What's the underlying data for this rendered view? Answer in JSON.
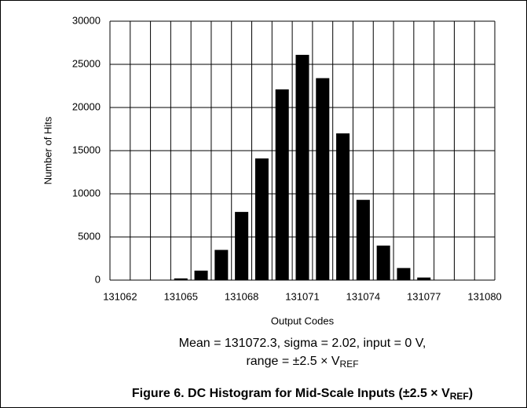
{
  "chart_data": {
    "type": "bar",
    "categories": [
      131062,
      null,
      null,
      131065,
      null,
      null,
      131068,
      null,
      null,
      131071,
      null,
      null,
      131074,
      null,
      null,
      131077,
      null,
      null,
      131080
    ],
    "values": [
      0,
      0,
      20,
      200,
      1100,
      3500,
      7900,
      14100,
      22100,
      26100,
      23400,
      17000,
      9300,
      4000,
      1400,
      300,
      30,
      0,
      0
    ],
    "color": "#000000",
    "ylim": [
      0,
      30000
    ],
    "yticks": [
      0,
      5000,
      10000,
      15000,
      20000,
      25000,
      30000
    ],
    "grid": true,
    "ylabel": "Number of Hits",
    "xlabel": "Output Codes",
    "annotation": [
      "Mean = 131072.3, sigma = 2.02, input = 0 V,",
      [
        "range = ±2.5 × V",
        "REF"
      ]
    ],
    "caption": [
      "Figure 6. DC Histogram for Mid-Scale Inputs (±2.5 × V",
      "REF",
      ")"
    ]
  }
}
